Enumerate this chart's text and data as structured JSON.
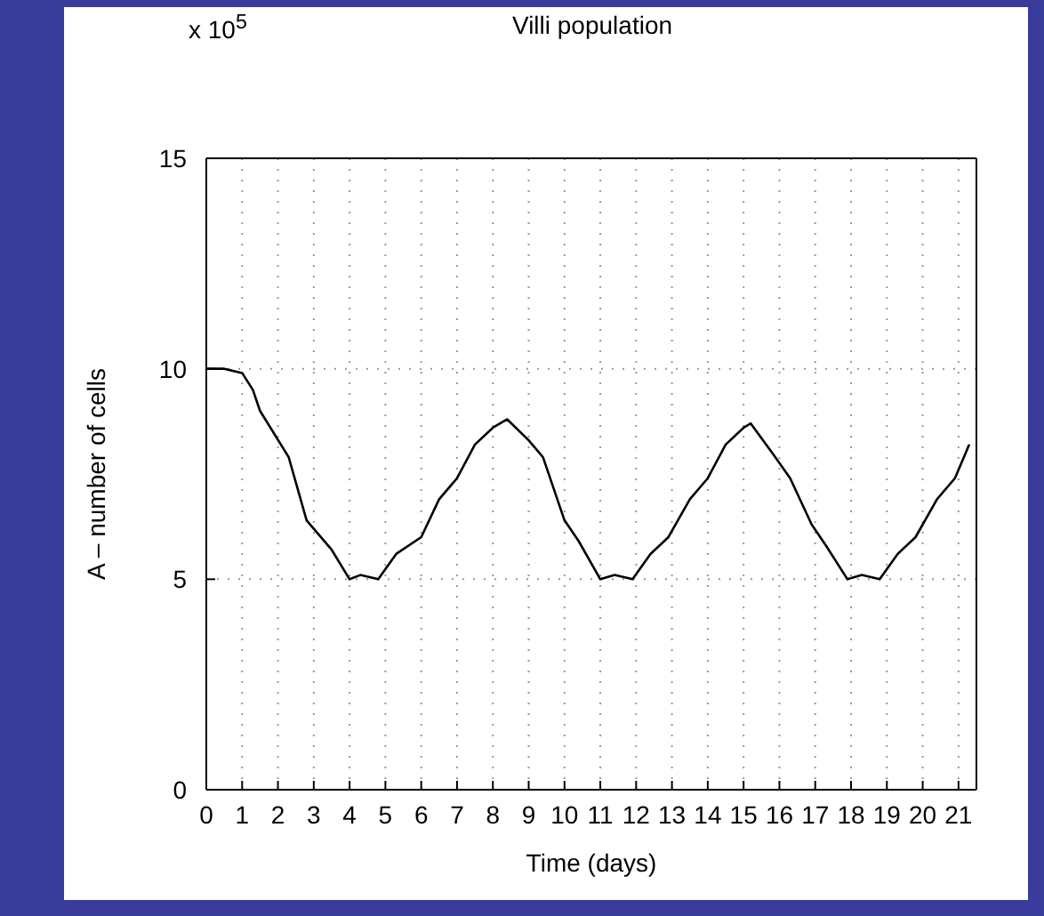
{
  "chart_data": {
    "type": "line",
    "title": "Villi population",
    "xlabel": "Time (days)",
    "ylabel": "A – number of cells",
    "annotations": [
      "x 10$^{5}$"
    ],
    "x": [
      0,
      0.5,
      1,
      1.3,
      1.5,
      2.3,
      2.8,
      3.5,
      4,
      4.3,
      4.8,
      5.3,
      6,
      6.5,
      7,
      7.5,
      8,
      8.4,
      9,
      9.4,
      10,
      10.4,
      11,
      11.4,
      11.9,
      12.4,
      12.9,
      13.5,
      14,
      14.5,
      15,
      15.2,
      15.8,
      16.3,
      16.9,
      17.3,
      17.9,
      18.3,
      18.8,
      19.3,
      19.8,
      20.4,
      20.9,
      21.3
    ],
    "series": [
      {
        "color": "#000000",
        "values": [
          10,
          10,
          9.9,
          9.5,
          9.0,
          7.9,
          6.4,
          5.7,
          5.0,
          5.1,
          5.0,
          5.6,
          6.0,
          6.9,
          7.4,
          8.2,
          8.6,
          8.8,
          8.3,
          7.9,
          6.4,
          5.9,
          5.0,
          5.1,
          5.0,
          5.6,
          6.0,
          6.9,
          7.4,
          8.2,
          8.6,
          8.7,
          8.0,
          7.4,
          6.3,
          5.8,
          5.0,
          5.1,
          5.0,
          5.6,
          6.0,
          6.9,
          7.4,
          8.2
        ]
      }
    ],
    "xlim": [
      0,
      21.5
    ],
    "xticks": [
      0,
      1,
      2,
      3,
      4,
      5,
      6,
      7,
      8,
      9,
      10,
      11,
      12,
      13,
      14,
      15,
      16,
      17,
      18,
      19,
      20,
      21
    ],
    "ylim": [
      0,
      15
    ],
    "yticks": [
      0,
      5,
      10,
      15
    ],
    "grid": true,
    "line_style": "solid"
  }
}
